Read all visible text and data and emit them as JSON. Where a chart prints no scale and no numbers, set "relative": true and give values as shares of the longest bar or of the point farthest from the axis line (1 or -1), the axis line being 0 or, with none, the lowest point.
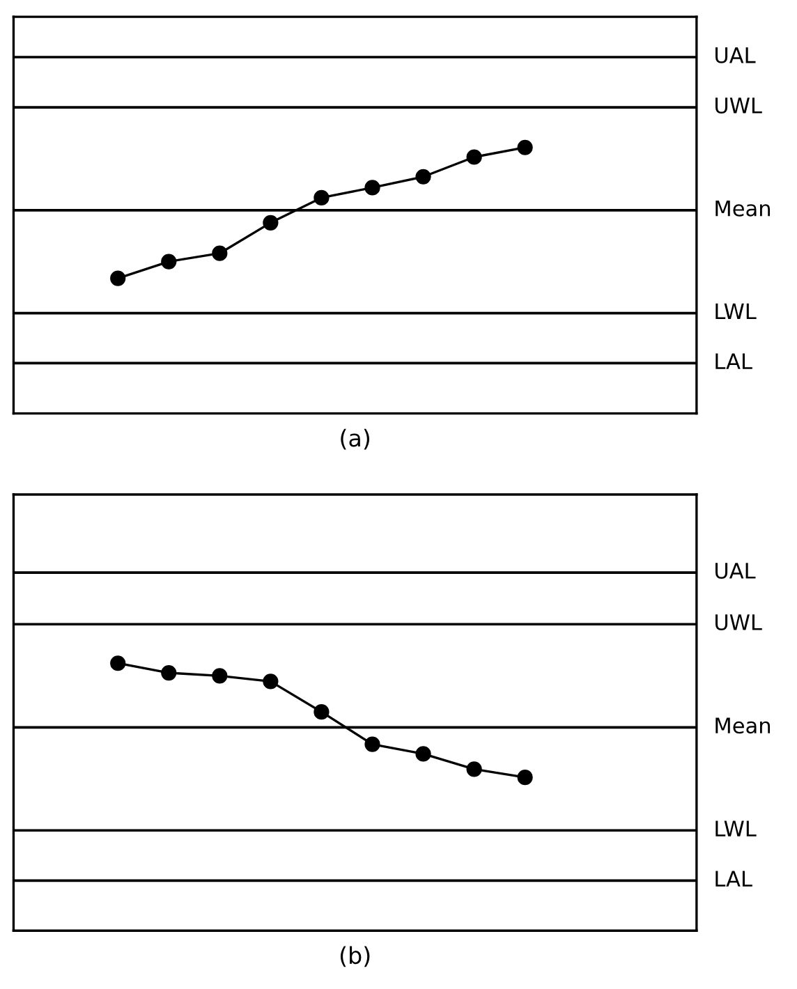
{
  "chart_data": [
    {
      "type": "line",
      "xlabel": "(a)",
      "relative": true,
      "marker": "circle",
      "line_style": "solid",
      "categories": [
        null,
        null,
        null,
        null,
        null,
        null,
        null,
        null,
        null
      ],
      "series": [
        {
          "color": "#000000",
          "values": [
            0.508,
            0.571,
            0.602,
            0.717,
            0.811,
            0.849,
            0.89,
            0.964,
            1
          ]
        }
      ],
      "ref_lines": [
        {
          "axis": "y",
          "value": 1.34,
          "label": "UAL",
          "color": "#000000"
        },
        {
          "axis": "y",
          "value": 1.151,
          "label": "UWL",
          "color": "#000000"
        },
        {
          "axis": "y",
          "value": 0.764,
          "label": "Mean",
          "color": "#000000"
        },
        {
          "axis": "y",
          "value": 0.377,
          "label": "LWL",
          "color": "#000000"
        },
        {
          "axis": "y",
          "value": 0.189,
          "label": "LAL",
          "color": "#000000"
        }
      ]
    },
    {
      "type": "line",
      "xlabel": "(b)",
      "relative": true,
      "marker": "circle",
      "line_style": "solid",
      "categories": [
        null,
        null,
        null,
        null,
        null,
        null,
        null,
        null,
        null
      ],
      "series": [
        {
          "color": "#000000",
          "values": [
            1,
            0.964,
            0.953,
            0.932,
            0.818,
            0.697,
            0.661,
            0.604,
            0.573
          ]
        }
      ],
      "ref_lines": [
        {
          "axis": "y",
          "value": 1.339,
          "label": "UAL",
          "color": "#000000"
        },
        {
          "axis": "y",
          "value": 1.146,
          "label": "UWL",
          "color": "#000000"
        },
        {
          "axis": "y",
          "value": 0.76,
          "label": "Mean",
          "color": "#000000"
        },
        {
          "axis": "y",
          "value": 0.375,
          "label": "LWL",
          "color": "#000000"
        },
        {
          "axis": "y",
          "value": 0.187,
          "label": "LAL",
          "color": "#000000"
        }
      ]
    }
  ]
}
